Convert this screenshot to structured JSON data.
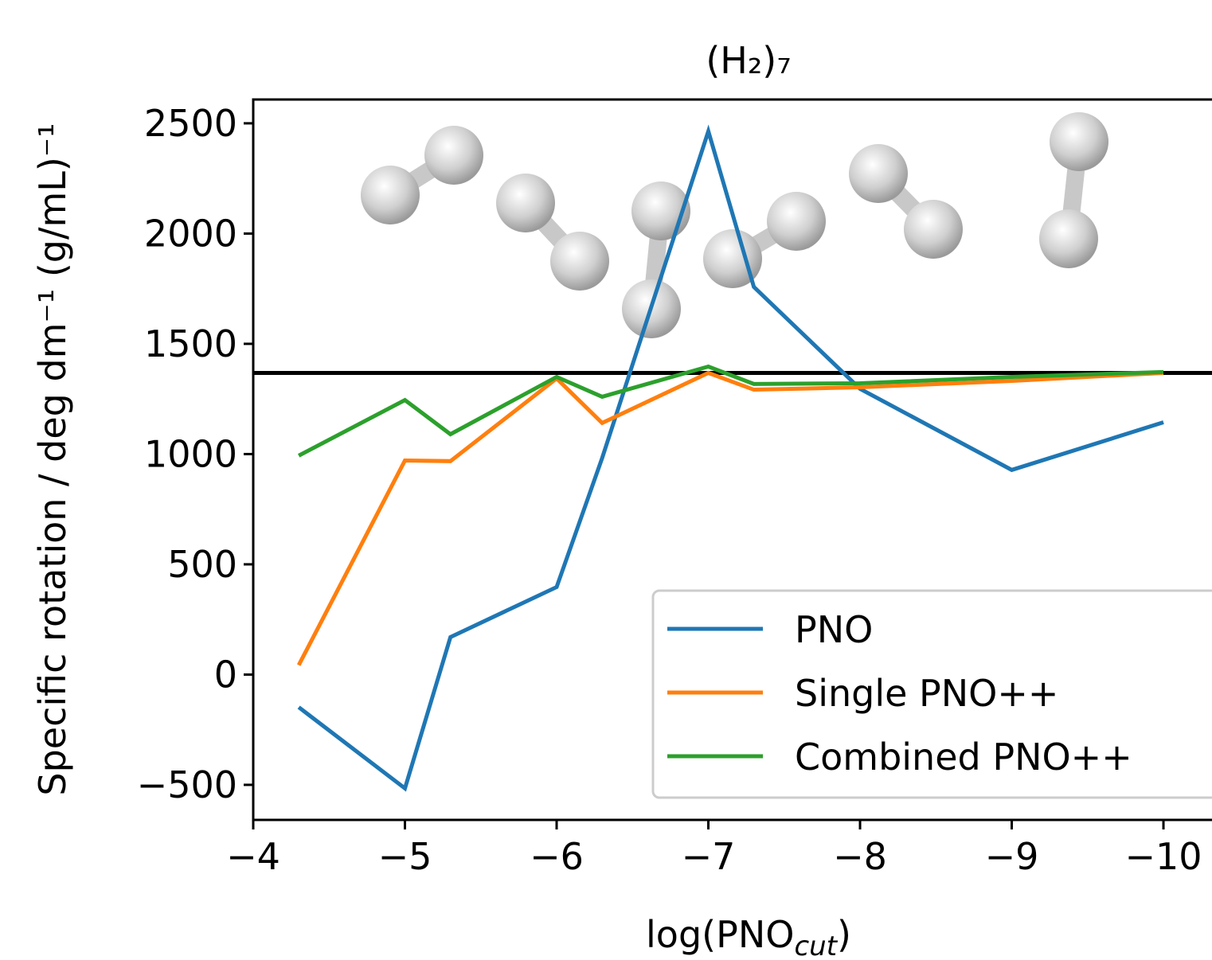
{
  "chart_data": {
    "type": "line",
    "title": "(H₂)₇",
    "xlabel": [
      "log(PNO",
      "cut",
      ")"
    ],
    "ylabel": "Specific rotation / deg dm⁻¹ (g/mL)⁻¹",
    "x": [
      -4.3,
      -5,
      -5.3,
      -6,
      -6.3,
      -7,
      -7.3,
      -8,
      -9,
      -10
    ],
    "series": [
      {
        "name": "PNO",
        "color": "#1f77b4",
        "values": [
          -148,
          -516,
          170,
          397,
          982,
          2464,
          1758,
          1296,
          928,
          1144
        ]
      },
      {
        "name": "Single PNO++",
        "color": "#ff7f0e",
        "values": [
          43,
          971,
          968,
          1343,
          1141,
          1368,
          1292,
          1303,
          1332,
          1368
        ]
      },
      {
        "name": "Combined PNO++",
        "color": "#2ca02c",
        "values": [
          993,
          1245,
          1090,
          1350,
          1260,
          1397,
          1318,
          1321,
          1350,
          1372
        ]
      }
    ],
    "hline": {
      "value": 1368,
      "color": "#000000"
    },
    "xlim": [
      -4,
      -10.32
    ],
    "ylim": [
      -659,
      2608
    ],
    "xticks": [
      {
        "value": -4,
        "label": "−4"
      },
      {
        "value": -5,
        "label": "−5"
      },
      {
        "value": -6,
        "label": "−6"
      },
      {
        "value": -7,
        "label": "−7"
      },
      {
        "value": -8,
        "label": "−8"
      },
      {
        "value": -9,
        "label": "−9"
      },
      {
        "value": -10,
        "label": "−10"
      }
    ],
    "yticks": [
      {
        "value": -500,
        "label": "−500"
      },
      0,
      500,
      1000,
      1500,
      2000,
      2500
    ],
    "legend": "lower right"
  }
}
